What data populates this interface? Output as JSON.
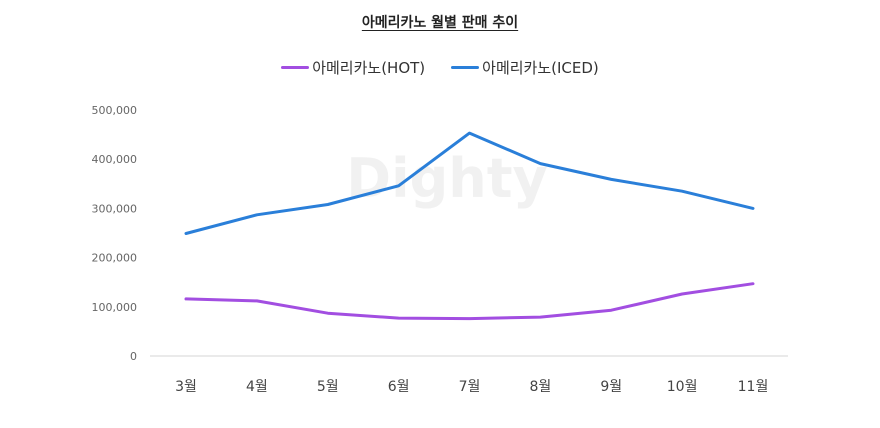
{
  "chart_data": {
    "type": "line",
    "title": "아메리카노 월별 판매 추이",
    "watermark": "Dighty",
    "categories": [
      "3월",
      "4월",
      "5월",
      "6월",
      "7월",
      "8월",
      "9월",
      "10월",
      "11월"
    ],
    "series": [
      {
        "name": "아메리카노(HOT)",
        "color": "#a24ee1",
        "values": [
          116000,
          112000,
          87000,
          77000,
          76000,
          79000,
          93000,
          126000,
          147000
        ]
      },
      {
        "name": "아메리카노(ICED)",
        "color": "#2a7fd9",
        "values": [
          249000,
          287000,
          308000,
          346000,
          453000,
          391000,
          359000,
          335000,
          300000
        ]
      }
    ],
    "ylim": [
      0,
      500000
    ],
    "yticks": [
      0,
      100000,
      200000,
      300000,
      400000,
      500000
    ],
    "ytick_labels": [
      "0",
      "100,000",
      "200,000",
      "300,000",
      "400,000",
      "500,000"
    ],
    "xlabel": "",
    "ylabel": "",
    "grid": false,
    "legend_position": "top-center"
  }
}
